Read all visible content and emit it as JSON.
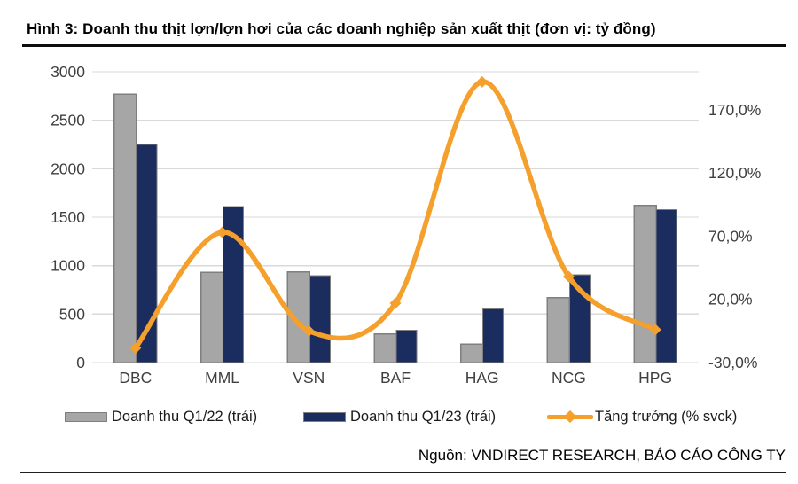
{
  "title": "Hình 3: Doanh thu thịt lợn/lợn hơi của các doanh nghiệp sản xuất thịt (đơn vị: tỷ đồng)",
  "source": "Nguồn: VNDIRECT RESEARCH, BÁO CÁO CÔNG TY",
  "colors": {
    "bar_q1_22": "#A6A6A6",
    "bar_q1_22_border": "#7F7F7F",
    "bar_q1_23": "#1B2D5E",
    "bar_q1_23_border": "#7F7F7F",
    "growth_line": "#F5A02C",
    "gridline": "#D9D9D9",
    "axis_text": "#3F3F3F"
  },
  "legend": {
    "items": [
      {
        "label": "Doanh thu Q1/22 (trái)",
        "type": "bar",
        "color": "#A6A6A6"
      },
      {
        "label": "Doanh thu Q1/23 (trái)",
        "type": "bar",
        "color": "#1B2D5E"
      },
      {
        "label": "Tăng trưởng (% svck)",
        "type": "line",
        "color": "#F5A02C"
      }
    ]
  },
  "chart_data": {
    "type": "bar",
    "subtype": "bar+line-combo",
    "categories": [
      "DBC",
      "MML",
      "VSN",
      "BAF",
      "HAG",
      "NCG",
      "HPG"
    ],
    "series": [
      {
        "name": "Doanh thu Q1/22 (trái)",
        "type": "bar",
        "axis": "left",
        "color": "#A6A6A6",
        "values": [
          2770,
          930,
          935,
          295,
          190,
          670,
          1620
        ]
      },
      {
        "name": "Doanh thu Q1/23 (trái)",
        "type": "bar",
        "axis": "left",
        "color": "#1B2D5E",
        "values": [
          2250,
          1610,
          895,
          335,
          555,
          905,
          1580
        ]
      },
      {
        "name": "Tăng trưởng (% svck)",
        "type": "line",
        "axis": "right",
        "color": "#F5A02C",
        "values_pct": [
          -18.5,
          73,
          -5,
          17,
          192,
          38,
          -4
        ]
      }
    ],
    "title": "Hình 3: Doanh thu thịt lợn/lợn hơi của các doanh nghiệp sản xuất thịt (đơn vị: tỷ đồng)",
    "xlabel": "",
    "ylabel_left": "tỷ đồng",
    "ylabel_right": "% svck",
    "left_axis": {
      "min": 0,
      "max": 3000,
      "step": 500,
      "tick_values": [
        0,
        500,
        1000,
        1500,
        2000,
        2500,
        3000
      ],
      "tick_labels": [
        "0",
        "500",
        "1000",
        "1500",
        "2000",
        "2500",
        "3000"
      ]
    },
    "right_axis": {
      "min": -30,
      "max": 200,
      "step": 50,
      "tick_values": [
        170,
        120,
        70,
        20,
        -30
      ],
      "tick_labels": [
        "170,0%",
        "120,0%",
        "70,0%",
        "20,0%",
        "-30,0%"
      ]
    },
    "grid": true,
    "smooth_line": true,
    "legend_position": "bottom"
  }
}
